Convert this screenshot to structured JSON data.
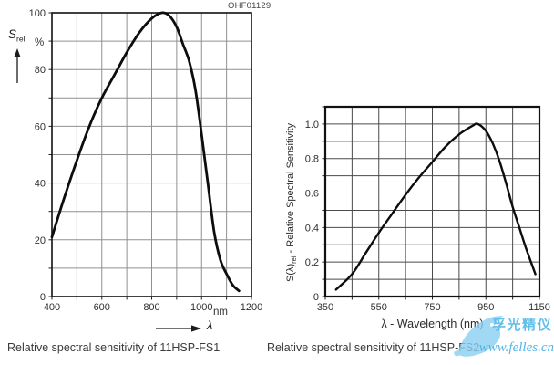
{
  "labels": {
    "left_y_symbol": "S",
    "left_y_symbol_sub": "rel",
    "left_y_unit": "%",
    "left_x_unit": "nm",
    "left_x_symbol": "λ",
    "right_y_prefix": "S(λ)",
    "right_y_sub": "rel",
    "right_y_rest": " - Relative Spectral Sensitivity"
  },
  "watermark": {
    "brand": "孚光精仪",
    "site": "www.felles.cn",
    "color": "#62bfec"
  },
  "chart_data": [
    {
      "type": "line",
      "device": "11HSP-FS1",
      "title": "Relative spectral sensitivity of 11HSP-FS1",
      "corner_label": "OHF01129",
      "xlabel": "λ",
      "x_unit": "nm",
      "ylabel": "S rel",
      "y_unit": "%",
      "xlim": [
        400,
        1200
      ],
      "ylim": [
        0,
        100
      ],
      "x_grid_step": 100,
      "y_grid_step": 10,
      "grid": true,
      "legend": "none",
      "x_ticks": [
        {
          "v": 400,
          "label": "400"
        },
        {
          "v": 600,
          "label": "600"
        },
        {
          "v": 800,
          "label": "800"
        },
        {
          "v": 1000,
          "label": "1000"
        },
        {
          "v": 1200,
          "label": "1200"
        }
      ],
      "y_ticks": [
        {
          "v": 0,
          "label": "0"
        },
        {
          "v": 20,
          "label": "20"
        },
        {
          "v": 40,
          "label": "40"
        },
        {
          "v": 60,
          "label": "60"
        },
        {
          "v": 80,
          "label": "80"
        },
        {
          "v": 100,
          "label": "100"
        }
      ],
      "series": [
        {
          "name": "relative spectral sensitivity (%)",
          "x": [
            400,
            450,
            500,
            550,
            600,
            650,
            700,
            750,
            800,
            840,
            870,
            900,
            925,
            950,
            975,
            1000,
            1025,
            1050,
            1075,
            1100,
            1125,
            1150
          ],
          "y": [
            21,
            35,
            48,
            60,
            70,
            78,
            86,
            93,
            98,
            100,
            99,
            95,
            89,
            83,
            73,
            57,
            40,
            23,
            13,
            8,
            4,
            2
          ]
        }
      ],
      "peak": {
        "x": 840,
        "y": 100
      }
    },
    {
      "type": "line",
      "device": "11HSP-FS2",
      "title": "Relative spectral sensitivity of 11HSP-FS2",
      "xlabel": "λ - Wavelength (nm)",
      "ylabel": "S(λ)rel - Relative Spectral Sensitivity",
      "xlim": [
        350,
        1150
      ],
      "ylim": [
        0,
        1.1
      ],
      "x_grid_step": 100,
      "y_grid_step": 0.1,
      "grid": true,
      "legend": "none",
      "x_ticks": [
        {
          "v": 350,
          "label": "350"
        },
        {
          "v": 550,
          "label": "550"
        },
        {
          "v": 750,
          "label": "750"
        },
        {
          "v": 950,
          "label": "950"
        },
        {
          "v": 1150,
          "label": "1150"
        }
      ],
      "y_ticks": [
        {
          "v": 0,
          "label": "0"
        },
        {
          "v": 0.2,
          "label": "0.2"
        },
        {
          "v": 0.4,
          "label": "0.4"
        },
        {
          "v": 0.6,
          "label": "0.6"
        },
        {
          "v": 0.8,
          "label": "0.8"
        },
        {
          "v": 1.0,
          "label": "1.0"
        }
      ],
      "series": [
        {
          "name": "relative spectral sensitivity",
          "x": [
            390,
            450,
            500,
            550,
            600,
            650,
            700,
            750,
            800,
            850,
            900,
            920,
            950,
            975,
            1000,
            1025,
            1050,
            1075,
            1100,
            1135
          ],
          "y": [
            0.04,
            0.13,
            0.25,
            0.37,
            0.48,
            0.59,
            0.69,
            0.78,
            0.87,
            0.94,
            0.99,
            1.0,
            0.96,
            0.89,
            0.79,
            0.66,
            0.52,
            0.4,
            0.28,
            0.13
          ]
        }
      ],
      "peak": {
        "x": 920,
        "y": 1.0
      }
    }
  ],
  "style": {
    "grid_color_left": "#909090",
    "grid_color_right": "#4a4a4a",
    "border_color": "#111111",
    "curve_color": "#0d0d0d"
  }
}
